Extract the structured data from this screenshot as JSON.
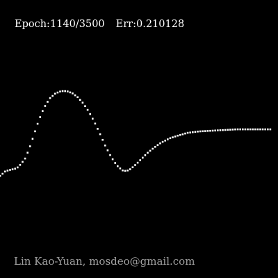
{
  "window": {
    "background_color": "#000000"
  },
  "status": {
    "epoch_label": "Epoch:",
    "epoch_current": "1140",
    "epoch_separator": "/",
    "epoch_total": "3500",
    "error_label": "Err:",
    "error_value": "0.210128",
    "text_color": "#ffffff"
  },
  "credit": {
    "text": "Lin Kao-Yuan, mosdeo@gmail.com",
    "text_color": "#a0a0a0"
  },
  "curve": {
    "dot_color": "#ffffff"
  }
}
